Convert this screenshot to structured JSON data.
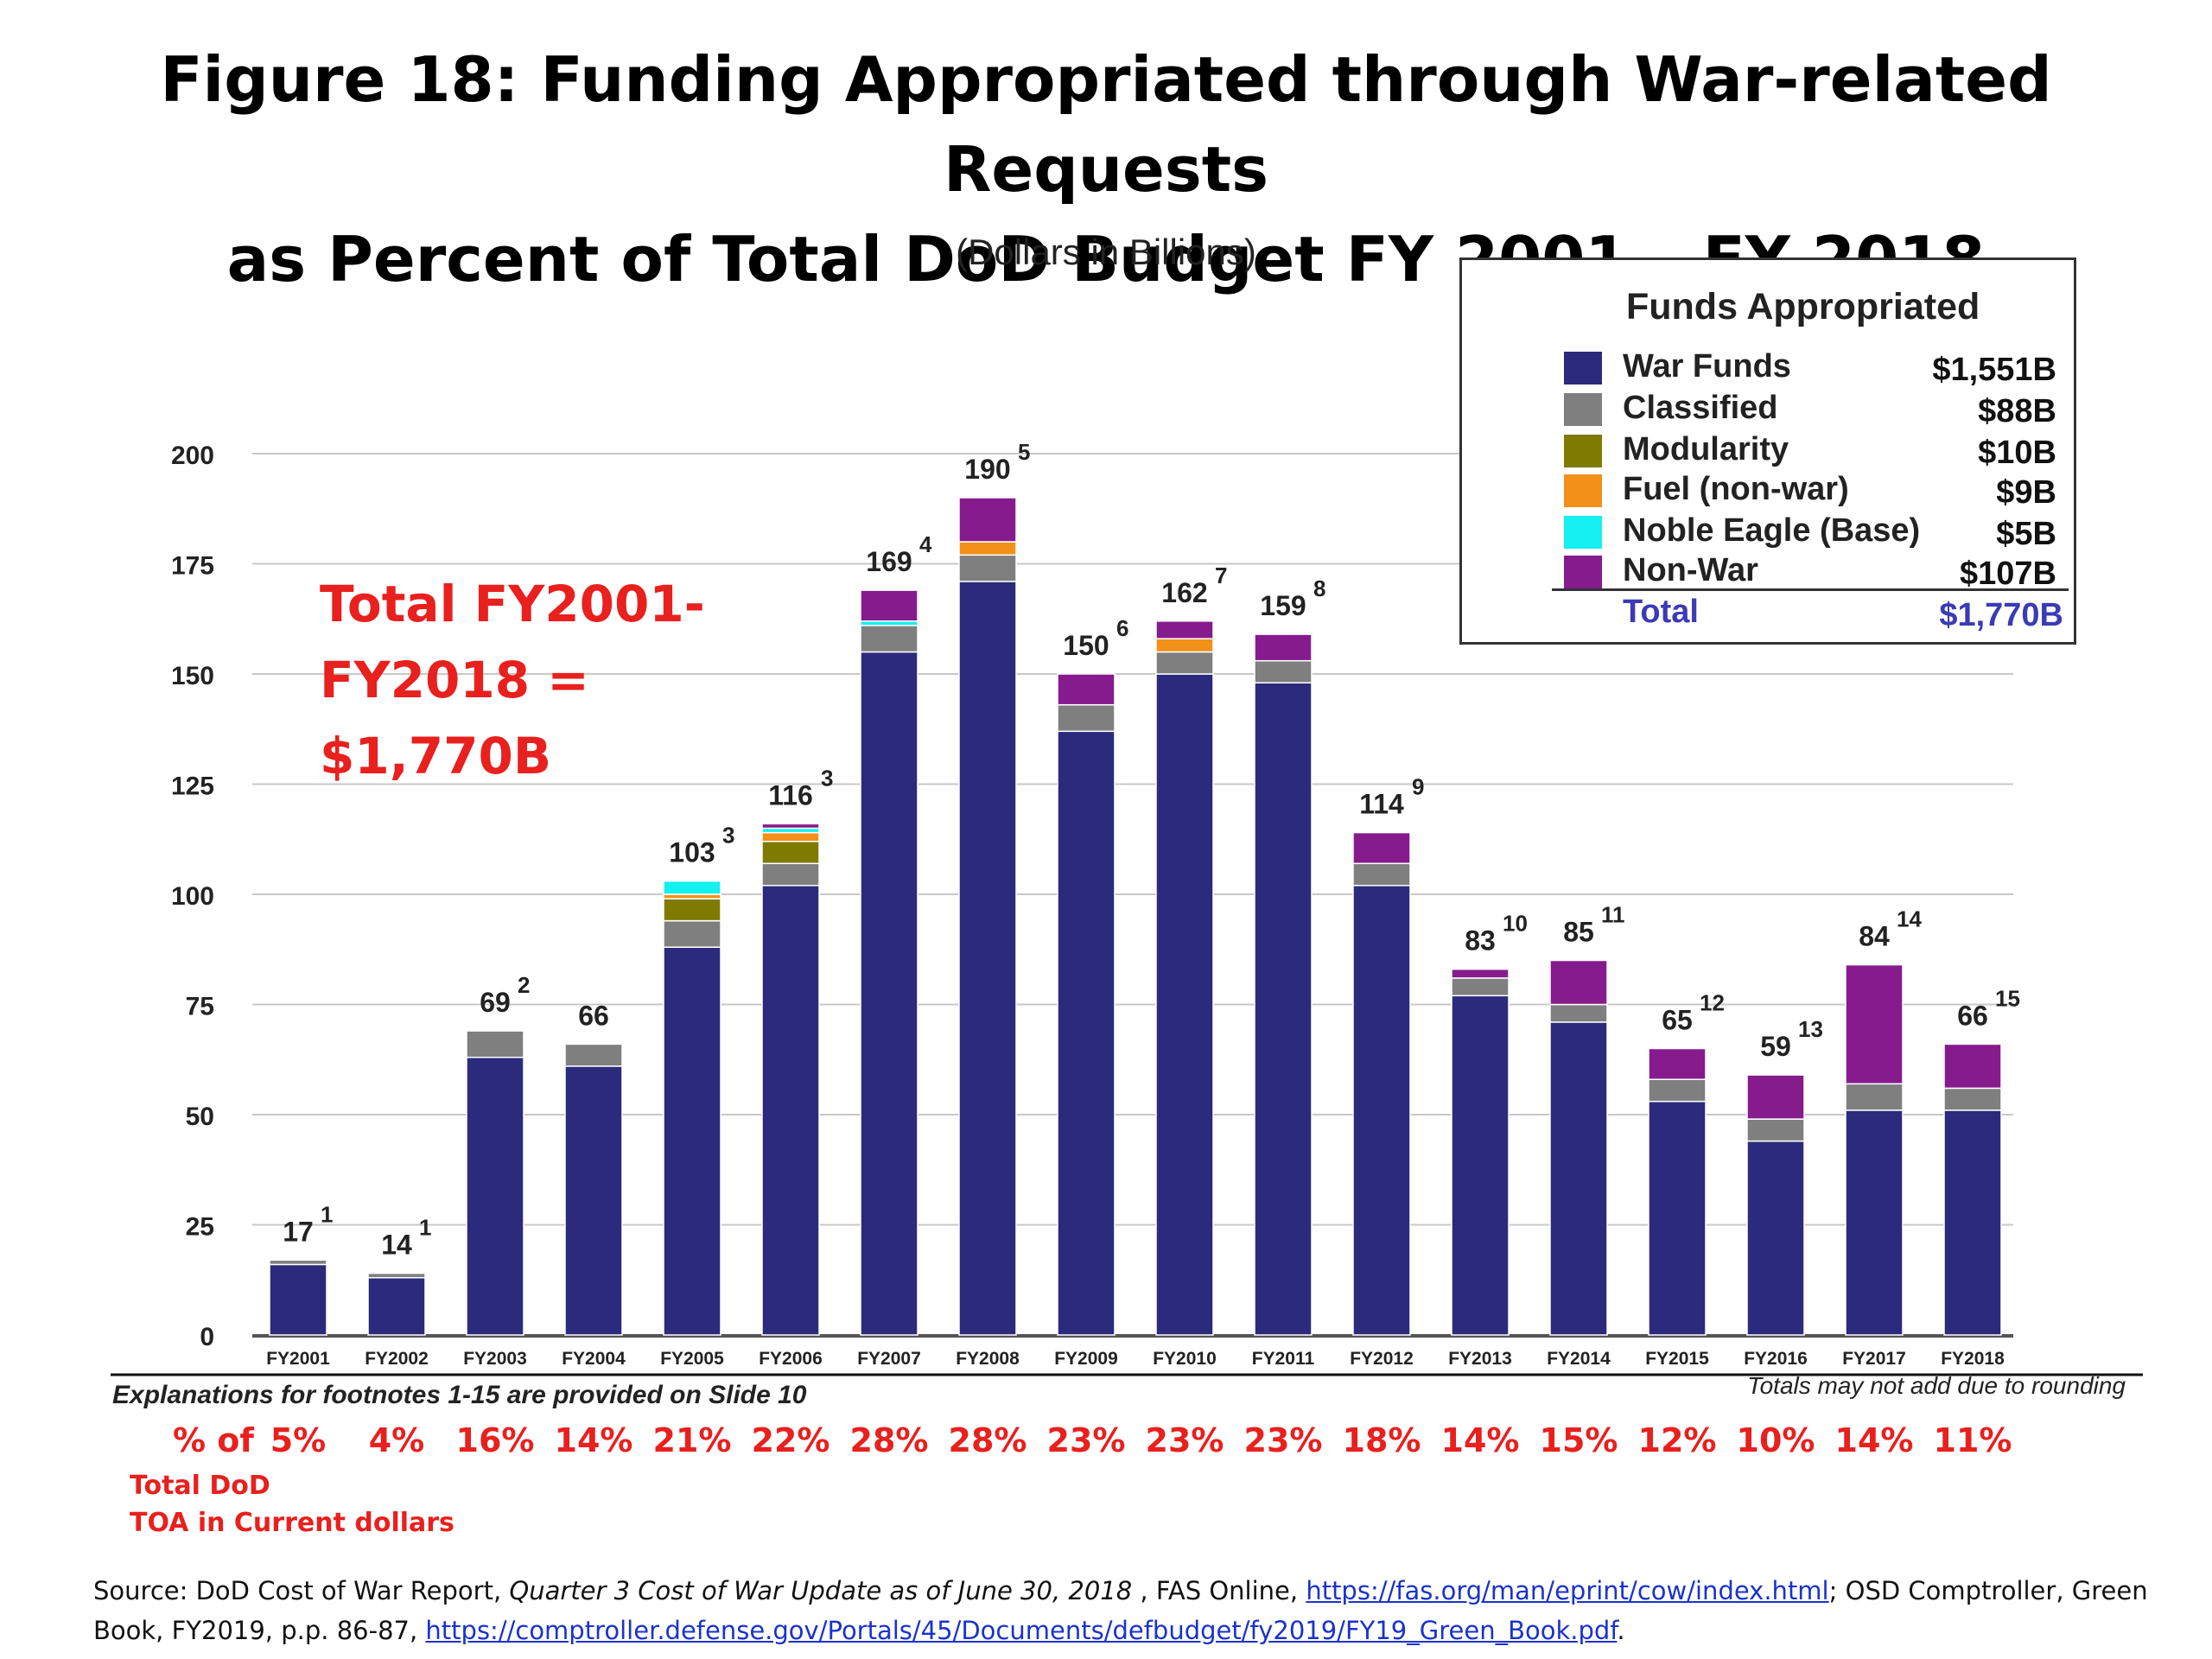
{
  "title": {
    "line1": "Figure 18: Funding Appropriated through War-related Requests",
    "line2": "as Percent of Total DoD Budget FY 2001 – FY 2018"
  },
  "subtitle": "(Dollars in Billions)",
  "total_callout": [
    "Total FY2001-",
    "FY2018 =",
    "$1,770B"
  ],
  "legend": {
    "title": "Funds Appropriated",
    "items": [
      {
        "label": "War Funds",
        "value": "$1,551B",
        "color": "#2c2a7c"
      },
      {
        "label": "Classified",
        "value": "$88B",
        "color": "#7f7f7f"
      },
      {
        "label": "Modularity",
        "value": "$10B",
        "color": "#7f7a00"
      },
      {
        "label": "Fuel (non-war)",
        "value": "$9B",
        "color": "#f39019"
      },
      {
        "label": "Noble Eagle (Base)",
        "value": "$5B",
        "color": "#15f0f0"
      },
      {
        "label": "Non-War",
        "value": "$107B",
        "color": "#861b8e"
      }
    ],
    "total_label": "Total",
    "total_value": "$1,770B"
  },
  "chart_data": {
    "type": "bar",
    "stacked": true,
    "categories": [
      "FY2001",
      "FY2002",
      "FY2003",
      "FY2004",
      "FY2005",
      "FY2006",
      "FY2007",
      "FY2008",
      "FY2009",
      "FY2010",
      "FY2011",
      "FY2012",
      "FY2013",
      "FY2014",
      "FY2015",
      "FY2016",
      "FY2017",
      "FY2018"
    ],
    "ylim": [
      0,
      200
    ],
    "yticks": [
      0,
      25,
      50,
      75,
      100,
      125,
      150,
      175,
      200
    ],
    "grid": true,
    "series": [
      {
        "name": "War Funds",
        "color": "#2c2a7c",
        "values": [
          16,
          13,
          63,
          61,
          88,
          102,
          155,
          171,
          137,
          150,
          148,
          102,
          77,
          71,
          53,
          44,
          51,
          51
        ]
      },
      {
        "name": "Classified",
        "color": "#7f7f7f",
        "values": [
          1,
          1,
          6,
          5,
          6,
          5,
          6,
          6,
          6,
          5,
          5,
          5,
          4,
          4,
          5,
          5,
          6,
          5
        ]
      },
      {
        "name": "Modularity",
        "color": "#7f7a00",
        "values": [
          0,
          0,
          0,
          0,
          5,
          5,
          0,
          0,
          0,
          0,
          0,
          0,
          0,
          0,
          0,
          0,
          0,
          0
        ]
      },
      {
        "name": "Fuel (non-war)",
        "color": "#f39019",
        "values": [
          0,
          0,
          0,
          0,
          1,
          2,
          0,
          3,
          0,
          3,
          0,
          0,
          0,
          0,
          0,
          0,
          0,
          0
        ]
      },
      {
        "name": "Noble Eagle (Base)",
        "color": "#15f0f0",
        "values": [
          0,
          0,
          0,
          0,
          3,
          1,
          1,
          0,
          0,
          0,
          0,
          0,
          0,
          0,
          0,
          0,
          0,
          0
        ]
      },
      {
        "name": "Non-War",
        "color": "#861b8e",
        "values": [
          0,
          0,
          0,
          0,
          0,
          1,
          7,
          10,
          7,
          4,
          6,
          7,
          2,
          10,
          7,
          10,
          27,
          10
        ]
      }
    ],
    "totals": [
      "17",
      "14",
      "69",
      "66",
      "103",
      "116",
      "169",
      "190",
      "150",
      "162",
      "159",
      "114",
      "83",
      "85",
      "65",
      "59",
      "84",
      "66"
    ],
    "footnotes": [
      "1",
      "1",
      "2",
      "",
      "3",
      "3",
      "4",
      "5",
      "6",
      "7",
      "8",
      "9",
      "10",
      "11",
      "12",
      "13",
      "14",
      "15"
    ]
  },
  "footnote_note": "Explanations for footnotes 1-15 are provided on Slide 10",
  "rounding_note": "Totals may not add due to rounding",
  "percent_row": {
    "head": "% of",
    "sub": [
      "Total DoD",
      "TOA in Current dollars"
    ],
    "values": [
      "5%",
      "4%",
      "16%",
      "14%",
      "21%",
      "22%",
      "28%",
      "28%",
      "23%",
      "23%",
      "23%",
      "18%",
      "14%",
      "15%",
      "12%",
      "10%",
      "14%",
      "11%"
    ]
  },
  "source": {
    "prefix": "Source: DoD Cost of War Report, ",
    "report": "Quarter 3 Cost of War Update as of June 30, 2018",
    "mid1": " , FAS Online, ",
    "link1": "https://fas.org/man/eprint/cow/index.html",
    "mid2": "; OSD Comptroller, Green Book, FY2019, p.p. 86-87, ",
    "link2": "https://comptroller.defense.gov/Portals/45/Documents/defbudget/fy2019/FY19_Green_Book.pdf",
    "suffix": "."
  }
}
